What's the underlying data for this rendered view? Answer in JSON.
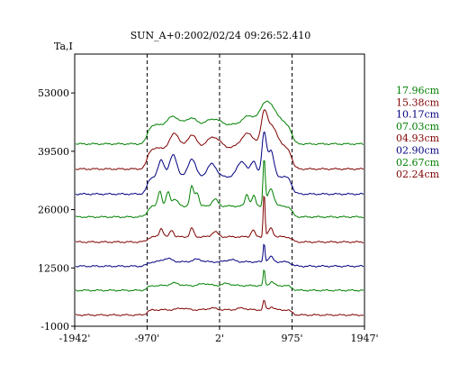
{
  "chart_data": {
    "type": "line",
    "title": "SUN_A+0:2002/02/24 09:26:52.410",
    "ylabel": "Ta,I",
    "xlabel": "",
    "x_ticks": [
      "-1942'",
      "-970'",
      "2'",
      "975'",
      "1947'"
    ],
    "x_tick_values": [
      -1942,
      -970,
      2,
      975,
      1947
    ],
    "y_ticks": [
      "53000",
      "39500",
      "26000",
      "12500",
      "-1000"
    ],
    "y_tick_values": [
      53000,
      39500,
      26000,
      12500,
      -1000
    ],
    "xlim": [
      -1942,
      1947
    ],
    "ylim": [
      -1000,
      62000
    ],
    "dashed_vlines": [
      -970,
      2,
      975
    ],
    "legend_position": "right",
    "series": [
      {
        "name": "17.96cm",
        "color": "#008000",
        "baseline": 41200,
        "limb_step": 4400,
        "bumps": [
          [
            -620,
            2000,
            70
          ],
          [
            -380,
            1600,
            70
          ],
          [
            -80,
            1400,
            90
          ],
          [
            400,
            2100,
            90
          ],
          [
            600,
            3000,
            60
          ],
          [
            700,
            3800,
            90
          ]
        ]
      },
      {
        "name": "15.38cm",
        "color": "#800000",
        "baseline": 35400,
        "limb_step": 4800,
        "bumps": [
          [
            -600,
            3500,
            60
          ],
          [
            -370,
            3100,
            60
          ],
          [
            -80,
            2600,
            90
          ],
          [
            380,
            3400,
            90
          ],
          [
            600,
            6500,
            40
          ],
          [
            700,
            5000,
            80
          ]
        ]
      },
      {
        "name": "10.17cm",
        "color": "#000080",
        "baseline": 29600,
        "limb_step": 4000,
        "bumps": [
          [
            -780,
            3800,
            40
          ],
          [
            -620,
            5000,
            50
          ],
          [
            -370,
            4200,
            50
          ],
          [
            -100,
            3000,
            60
          ],
          [
            300,
            3600,
            60
          ],
          [
            460,
            3600,
            40
          ],
          [
            600,
            10000,
            30
          ],
          [
            690,
            6000,
            40
          ]
        ]
      },
      {
        "name": "07.03cm",
        "color": "#008000",
        "baseline": 24300,
        "limb_step": 2500,
        "bumps": [
          [
            -800,
            3600,
            25
          ],
          [
            -690,
            3200,
            25
          ],
          [
            -600,
            1600,
            40
          ],
          [
            -370,
            4600,
            25
          ],
          [
            -300,
            3200,
            25
          ],
          [
            -60,
            1600,
            40
          ],
          [
            370,
            2800,
            25
          ],
          [
            460,
            2400,
            25
          ],
          [
            600,
            11000,
            15
          ],
          [
            690,
            4000,
            40
          ]
        ]
      },
      {
        "name": "04.93cm",
        "color": "#800000",
        "baseline": 18500,
        "limb_step": 1200,
        "bumps": [
          [
            -780,
            2000,
            25
          ],
          [
            -640,
            1600,
            25
          ],
          [
            -370,
            2000,
            25
          ],
          [
            -60,
            1200,
            40
          ],
          [
            450,
            1600,
            25
          ],
          [
            600,
            10500,
            12
          ],
          [
            690,
            2000,
            30
          ]
        ]
      },
      {
        "name": "02.90cm",
        "color": "#000080",
        "baseline": 12900,
        "limb_step": 1000,
        "bumps": [
          [
            -700,
            800,
            60
          ],
          [
            -300,
            600,
            60
          ],
          [
            150,
            500,
            60
          ],
          [
            600,
            4500,
            12
          ],
          [
            690,
            1200,
            30
          ]
        ]
      },
      {
        "name": "02.67cm",
        "color": "#008000",
        "baseline": 7300,
        "limb_step": 1100,
        "bumps": [
          [
            -600,
            600,
            60
          ],
          [
            -200,
            500,
            60
          ],
          [
            100,
            500,
            60
          ],
          [
            600,
            3800,
            12
          ],
          [
            700,
            900,
            30
          ]
        ]
      },
      {
        "name": "02.24cm",
        "color": "#800000",
        "baseline": 1600,
        "limb_step": 1200,
        "bumps": [
          [
            -500,
            400,
            60
          ],
          [
            -100,
            400,
            60
          ],
          [
            300,
            400,
            60
          ],
          [
            600,
            2200,
            15
          ],
          [
            700,
            700,
            30
          ]
        ]
      }
    ]
  }
}
